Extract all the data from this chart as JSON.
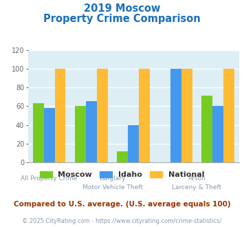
{
  "title_line1": "2019 Moscow",
  "title_line2": "Property Crime Comparison",
  "title_color": "#1a6fba",
  "moscow": [
    63,
    60,
    12,
    0,
    71
  ],
  "idaho": [
    58,
    65,
    40,
    100,
    60
  ],
  "national": [
    100,
    100,
    100,
    100,
    100
  ],
  "moscow_color": "#77cc22",
  "idaho_color": "#4499ee",
  "national_color": "#ffbb33",
  "plot_bg": "#ddeef4",
  "ylim": [
    0,
    120
  ],
  "yticks": [
    0,
    20,
    40,
    60,
    80,
    100,
    120
  ],
  "legend_labels": [
    "Moscow",
    "Idaho",
    "National"
  ],
  "footnote1": "Compared to U.S. average. (U.S. average equals 100)",
  "footnote2": "© 2025 CityRating.com - https://www.cityrating.com/crime-statistics/",
  "footnote1_color": "#993300",
  "footnote2_color": "#8899aa",
  "xtick_color": "#8899aa",
  "label_groups": [
    {
      "x": 0,
      "line1": "All Property Crime",
      "line2": null
    },
    {
      "x": 1.5,
      "line1": "Burglary",
      "line2": "Motor Vehicle Theft"
    },
    {
      "x": 3.5,
      "line1": "Arson",
      "line2": "Larceny & Theft"
    }
  ]
}
